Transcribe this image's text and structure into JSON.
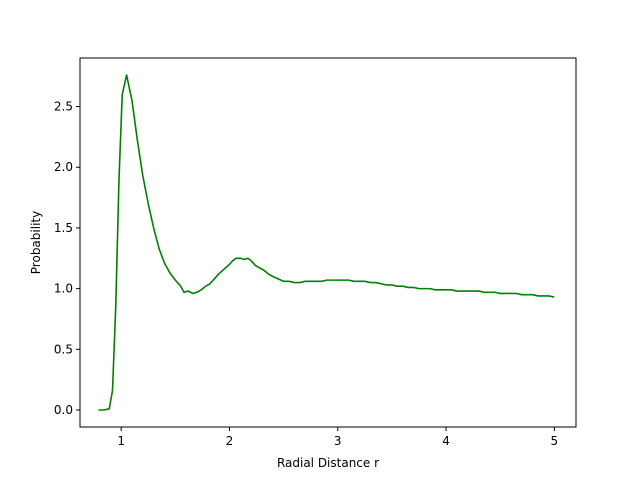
{
  "chart_data": {
    "type": "line",
    "title": "",
    "xlabel": "Radial Distance r",
    "ylabel": "Probability",
    "xlim": [
      0.62,
      5.2
    ],
    "ylim": [
      -0.14,
      2.9
    ],
    "grid": false,
    "x_ticks": [
      1,
      2,
      3,
      4,
      5
    ],
    "x_tick_labels": [
      "1",
      "2",
      "3",
      "4",
      "5"
    ],
    "y_ticks": [
      0.0,
      0.5,
      1.0,
      1.5,
      2.0,
      2.5
    ],
    "y_tick_labels": [
      "0.0",
      "0.5",
      "1.0",
      "1.5",
      "2.0",
      "2.5"
    ],
    "series": [
      {
        "color": "#008000",
        "x": [
          0.79,
          0.84,
          0.89,
          0.92,
          0.95,
          0.98,
          1.01,
          1.05,
          1.1,
          1.15,
          1.2,
          1.25,
          1.3,
          1.35,
          1.4,
          1.45,
          1.5,
          1.55,
          1.58,
          1.62,
          1.66,
          1.7,
          1.74,
          1.78,
          1.82,
          1.86,
          1.9,
          1.95,
          2.0,
          2.03,
          2.06,
          2.1,
          2.14,
          2.17,
          2.2,
          2.24,
          2.28,
          2.32,
          2.36,
          2.4,
          2.45,
          2.5,
          2.55,
          2.6,
          2.65,
          2.7,
          2.75,
          2.8,
          2.85,
          2.9,
          2.95,
          3.0,
          3.05,
          3.1,
          3.15,
          3.2,
          3.25,
          3.3,
          3.35,
          3.4,
          3.45,
          3.5,
          3.55,
          3.6,
          3.65,
          3.7,
          3.75,
          3.8,
          3.85,
          3.9,
          3.95,
          4.0,
          4.05,
          4.1,
          4.15,
          4.2,
          4.25,
          4.3,
          4.35,
          4.4,
          4.45,
          4.5,
          4.55,
          4.6,
          4.65,
          4.7,
          4.75,
          4.8,
          4.85,
          4.9,
          4.95,
          5.0
        ],
        "y": [
          0.0,
          0.0,
          0.01,
          0.16,
          0.85,
          1.9,
          2.6,
          2.76,
          2.55,
          2.22,
          1.93,
          1.7,
          1.5,
          1.33,
          1.21,
          1.13,
          1.07,
          1.02,
          0.97,
          0.98,
          0.96,
          0.97,
          0.99,
          1.02,
          1.04,
          1.08,
          1.12,
          1.16,
          1.2,
          1.23,
          1.25,
          1.25,
          1.24,
          1.25,
          1.23,
          1.19,
          1.17,
          1.15,
          1.12,
          1.1,
          1.08,
          1.06,
          1.06,
          1.05,
          1.05,
          1.06,
          1.06,
          1.06,
          1.06,
          1.07,
          1.07,
          1.07,
          1.07,
          1.07,
          1.06,
          1.06,
          1.06,
          1.05,
          1.05,
          1.04,
          1.03,
          1.03,
          1.02,
          1.02,
          1.01,
          1.01,
          1.0,
          1.0,
          1.0,
          0.99,
          0.99,
          0.99,
          0.99,
          0.98,
          0.98,
          0.98,
          0.98,
          0.98,
          0.97,
          0.97,
          0.97,
          0.96,
          0.96,
          0.96,
          0.96,
          0.95,
          0.95,
          0.95,
          0.94,
          0.94,
          0.94,
          0.93
        ]
      }
    ]
  }
}
